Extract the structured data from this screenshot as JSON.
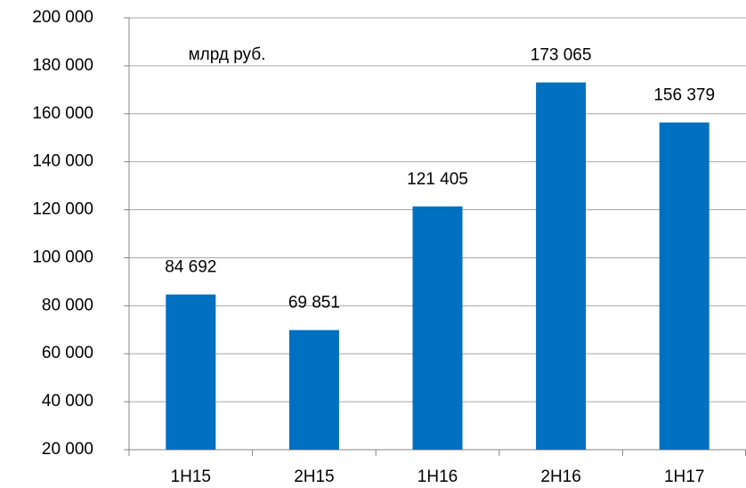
{
  "chart_data": {
    "type": "bar",
    "annotation": "млрд руб.",
    "categories": [
      "1H15",
      "2H15",
      "1H16",
      "2H16",
      "1H17"
    ],
    "values": [
      84692,
      69851,
      121405,
      173065,
      156379
    ],
    "value_labels": [
      "84 692",
      "69 851",
      "121 405",
      "173 065",
      "156 379"
    ],
    "color": "#0070c0",
    "ylim": [
      20000,
      200000
    ],
    "yticks": [
      {
        "value": 20000,
        "label": "20 000"
      },
      {
        "value": 40000,
        "label": "40 000"
      },
      {
        "value": 60000,
        "label": "60 000"
      },
      {
        "value": 80000,
        "label": "80 000"
      },
      {
        "value": 100000,
        "label": "100 000"
      },
      {
        "value": 120000,
        "label": "120 000"
      },
      {
        "value": 140000,
        "label": "140 000"
      },
      {
        "value": 160000,
        "label": "160 000"
      },
      {
        "value": 180000,
        "label": "180 000"
      },
      {
        "value": 200000,
        "label": "200 000"
      }
    ],
    "grid": true
  }
}
